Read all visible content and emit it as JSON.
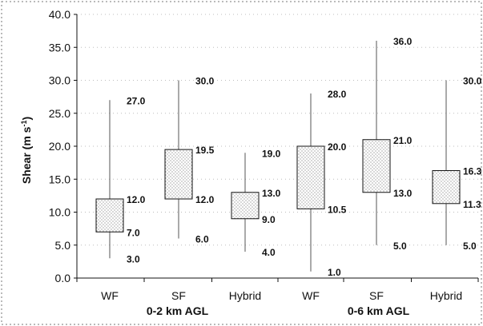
{
  "chart_data": {
    "type": "box",
    "ylabel": "Shear (m s-1)",
    "ylim": [
      0,
      40
    ],
    "yticks": [
      "0.0",
      "5.0",
      "10.0",
      "15.0",
      "20.0",
      "25.0",
      "30.0",
      "35.0",
      "40.0"
    ],
    "grid": true,
    "groups": [
      {
        "label": "0-2 km AGL",
        "boxes": [
          {
            "category": "WF",
            "min": 3.0,
            "q1": 7.0,
            "q3": 12.0,
            "max": 27.0
          },
          {
            "category": "SF",
            "min": 6.0,
            "q1": 12.0,
            "q3": 19.5,
            "max": 30.0
          },
          {
            "category": "Hybrid",
            "min": 4.0,
            "q1": 9.0,
            "q3": 13.0,
            "max": 19.0
          }
        ]
      },
      {
        "label": "0-6 km AGL",
        "boxes": [
          {
            "category": "WF",
            "min": 1.0,
            "q1": 10.5,
            "q3": 20.0,
            "max": 28.0
          },
          {
            "category": "SF",
            "min": 5.0,
            "q1": 13.0,
            "q3": 21.0,
            "max": 36.0
          },
          {
            "category": "Hybrid",
            "min": 5.0,
            "q1": 11.3,
            "q3": 16.3,
            "max": 30.0
          }
        ]
      }
    ]
  }
}
